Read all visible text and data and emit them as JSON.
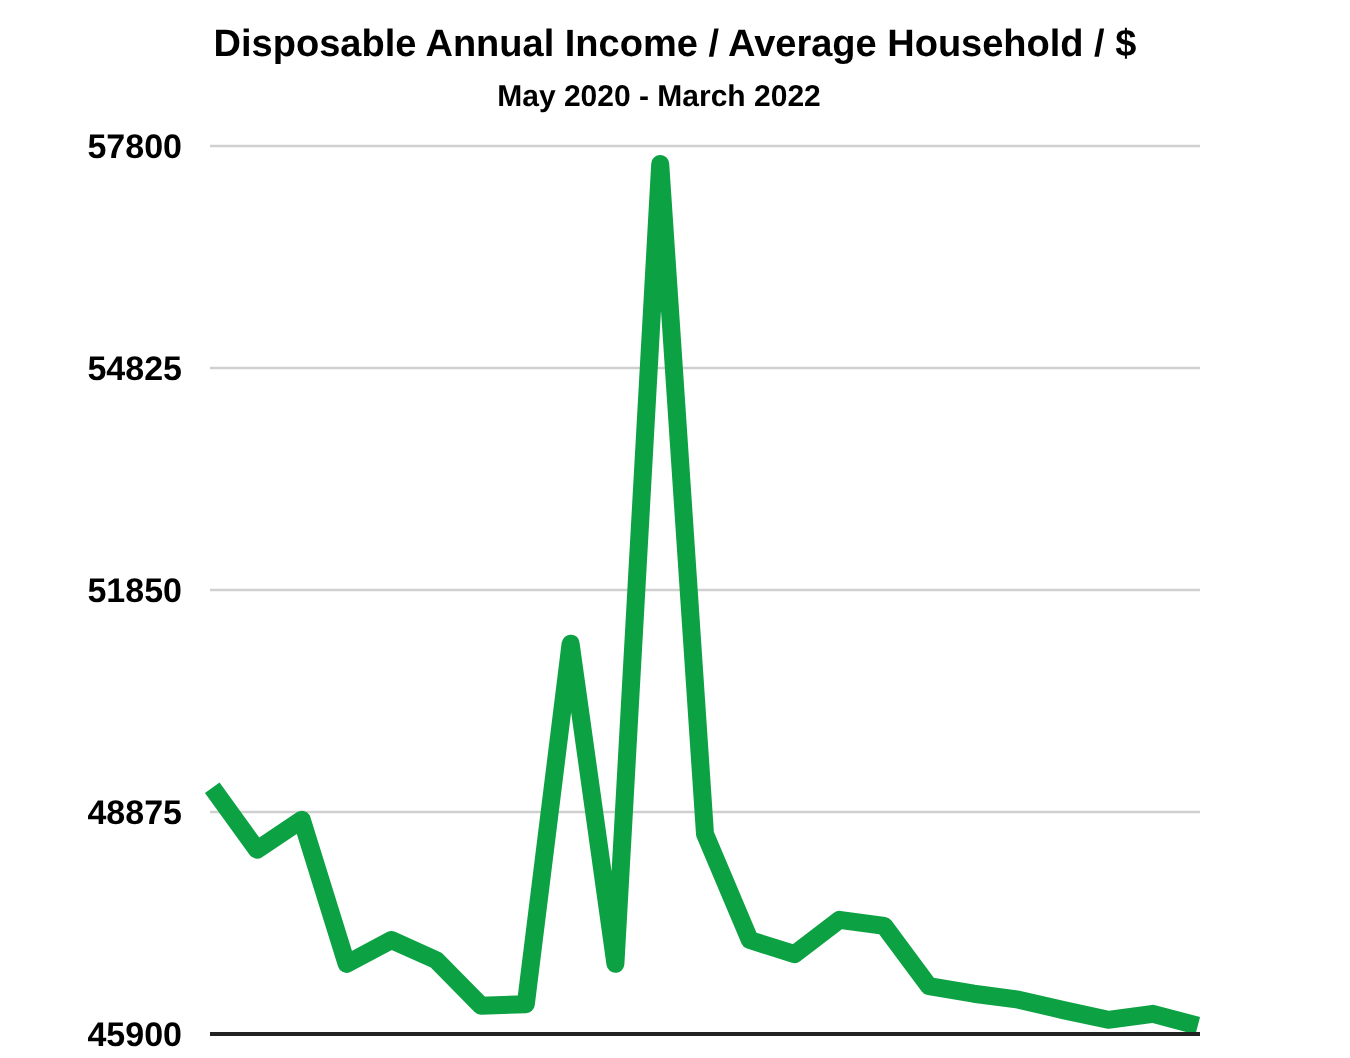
{
  "chart_data": {
    "type": "line",
    "title": "Disposable Annual Income / Average Household / $",
    "subtitle": "May 2020 - March 2022",
    "categories": [
      null,
      null,
      null,
      null,
      null,
      null,
      null,
      null,
      null,
      null,
      null,
      null,
      null,
      null,
      null,
      null,
      null,
      null,
      null,
      null,
      null,
      null,
      null
    ],
    "series": [
      {
        "color": "#0ca243",
        "values": [
          49200,
          48370,
          48770,
          46840,
          47160,
          46890,
          46280,
          46300,
          51130,
          46840,
          57560,
          48580,
          47160,
          46970,
          47430,
          47350,
          46540,
          46440,
          46360,
          46220,
          46090,
          46170,
          46010
        ]
      }
    ],
    "ylim": [
      45900,
      57800
    ],
    "yticks": [
      45900,
      48875,
      51850,
      54825,
      57800
    ],
    "grid": "y",
    "marker": "none",
    "line_style": "solid"
  }
}
